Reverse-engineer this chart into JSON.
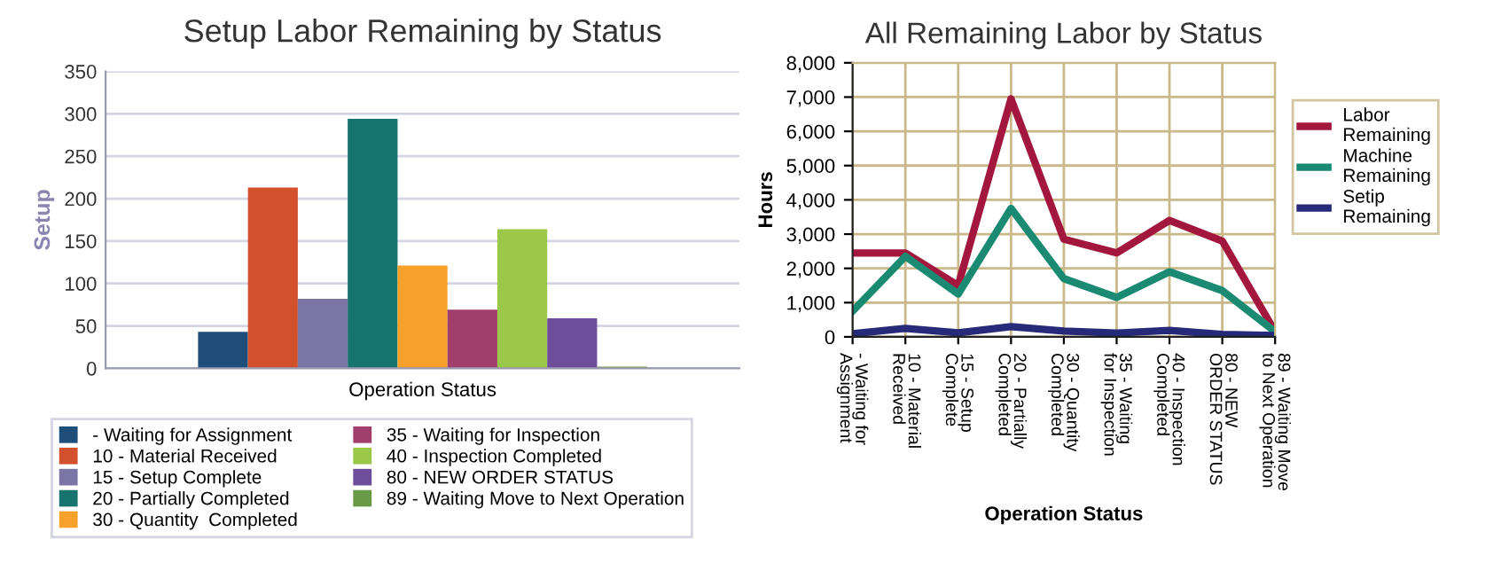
{
  "chart_data": [
    {
      "type": "bar",
      "title": "Setup Labor Remaining by Status",
      "xlabel": "Operation Status",
      "ylabel": "Setup",
      "categories": [
        null
      ],
      "ylim": [
        0,
        350
      ],
      "yticks": [
        0,
        50,
        100,
        150,
        200,
        250,
        300,
        350
      ],
      "grid": "y",
      "legend": "bottom",
      "series": [
        {
          "name": "- Waiting for Assignment",
          "color": "#1f4e7a",
          "values": [
            43
          ]
        },
        {
          "name": "10 - Material Received",
          "color": "#d2502c",
          "values": [
            213
          ]
        },
        {
          "name": "15 - Setup Complete",
          "color": "#7a75a5",
          "values": [
            82
          ]
        },
        {
          "name": "20 - Partially Completed",
          "color": "#17736e",
          "values": [
            294
          ]
        },
        {
          "name": "30 - Quantity  Completed",
          "color": "#f7a12a",
          "values": [
            121
          ]
        },
        {
          "name": "35 - Waiting for Inspection",
          "color": "#a03f6c",
          "values": [
            69
          ]
        },
        {
          "name": "40 - Inspection Completed",
          "color": "#9cc84a",
          "values": [
            164
          ]
        },
        {
          "name": "80 - NEW ORDER STATUS",
          "color": "#6e4e9a",
          "values": [
            59
          ]
        },
        {
          "name": "89 - Waiting Move to Next Operation",
          "color": "#6a9a48",
          "values": [
            2
          ]
        }
      ]
    },
    {
      "type": "line",
      "title": "All Remaining Labor by Status",
      "xlabel": "Operation Status",
      "ylabel": "Hours",
      "categories": [
        "- Waiting for Assignment",
        "10 - Material Received",
        "15 - Setup Complete",
        "20 - Partially Completed",
        "30 - Quantity Completed",
        "35 - Waiting for Inspection",
        "40 - Inspection Completed",
        "80 - NEW ORDER STATUS",
        "89 - Waiting Move to Next Operation"
      ],
      "ylim": [
        0,
        8000
      ],
      "yticks": [
        {
          "value": 0,
          "label": "0"
        },
        {
          "value": 1000,
          "label": "1,000"
        },
        {
          "value": 2000,
          "label": "2,000"
        },
        {
          "value": 3000,
          "label": "3,000"
        },
        {
          "value": 4000,
          "label": "4,000"
        },
        {
          "value": 5000,
          "label": "5,000"
        },
        {
          "value": 6000,
          "label": "6,000"
        },
        {
          "value": 7000,
          "label": "7,000"
        },
        {
          "value": 8000,
          "label": "8,000"
        }
      ],
      "grid": true,
      "legend": "right",
      "marker": "none",
      "line_style": "solid",
      "series": [
        {
          "name": "Labor Remaining",
          "color": "#a3173f",
          "values": [
            2450,
            2450,
            1500,
            6950,
            2850,
            2450,
            3400,
            2800,
            150
          ]
        },
        {
          "name": "Machine Remaining",
          "color": "#1a8a72",
          "values": [
            750,
            2350,
            1250,
            3750,
            1700,
            1150,
            1900,
            1350,
            150
          ]
        },
        {
          "name": "Setip Remaining",
          "color": "#262a78",
          "values": [
            90,
            250,
            120,
            300,
            170,
            110,
            190,
            70,
            40
          ]
        }
      ]
    }
  ]
}
